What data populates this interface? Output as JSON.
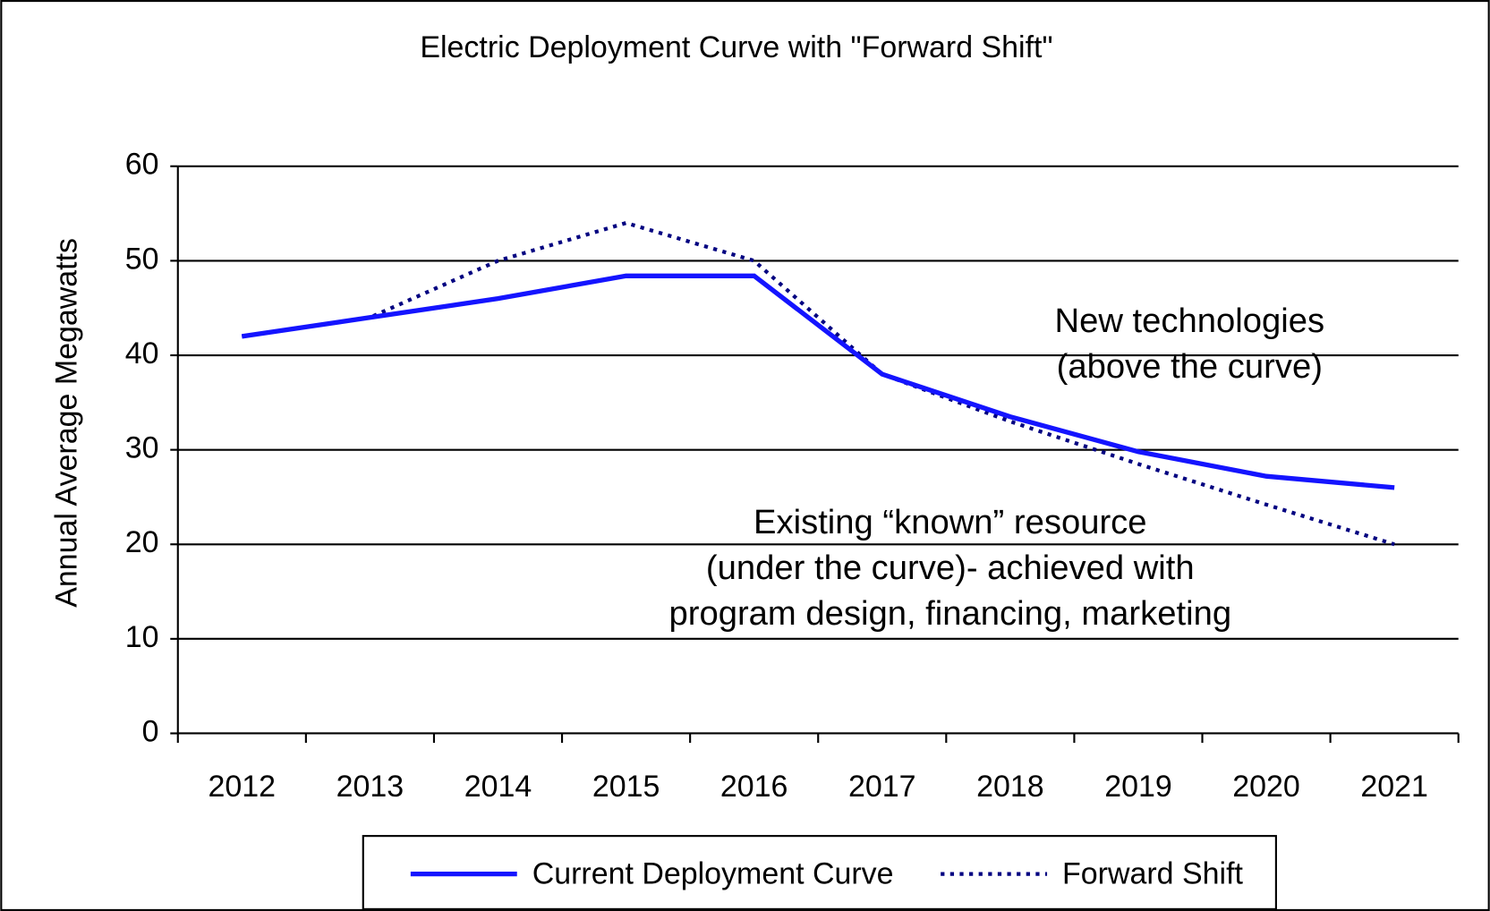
{
  "chart_data": {
    "type": "line",
    "title": "Electric Deployment Curve with \"Forward Shift\"",
    "y_label": "Annual Average Megawatts",
    "categories": [
      "2012",
      "2013",
      "2014",
      "2015",
      "2016",
      "2017",
      "2018",
      "2019",
      "2020",
      "2021"
    ],
    "series": [
      {
        "name": "Current Deployment Curve",
        "color": "#1414ff",
        "style": "solid",
        "values": [
          42,
          44,
          46,
          48.4,
          48.4,
          38,
          33.5,
          29.8,
          27.2,
          26
        ]
      },
      {
        "name": "Forward Shift",
        "color": "#000080",
        "style": "dotted",
        "values": [
          42,
          44,
          50,
          54,
          50,
          38,
          33,
          28.5,
          24.2,
          20
        ]
      }
    ],
    "ylim": [
      0,
      60
    ],
    "yticks": [
      0,
      10,
      20,
      30,
      40,
      50,
      60
    ],
    "grid": true,
    "legend": "bottom",
    "annotations": [
      {
        "lines": [
          "New technologies",
          "(above the curve)"
        ]
      },
      {
        "lines": [
          "Existing “known” resource",
          "(under the curve)- achieved with",
          "program design, financing, marketing"
        ]
      }
    ]
  }
}
